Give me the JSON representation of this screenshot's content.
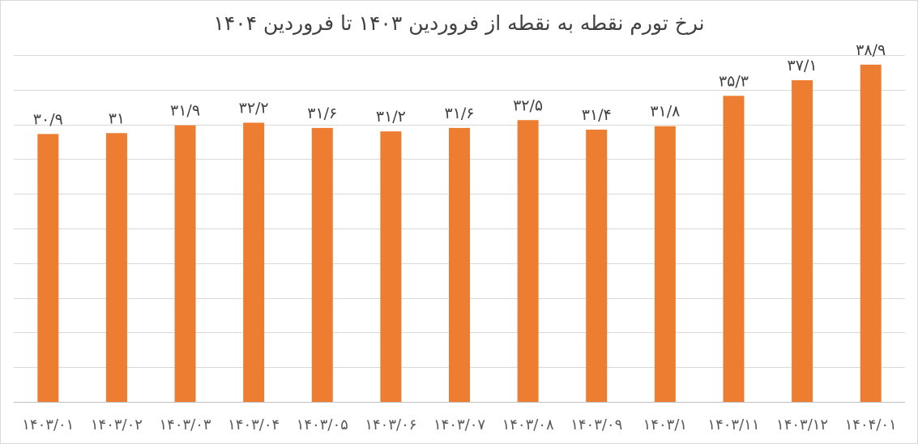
{
  "chart_data": {
    "type": "bar",
    "title": "نرخ تورم نقطه به نقطه از فروردین ۱۴۰۳ تا فروردین ۱۴۰۴",
    "xlabel": "",
    "ylabel": "",
    "categories": [
      "۱۴۰۳/۰۱",
      "۱۴۰۳/۰۲",
      "۱۴۰۳/۰۳",
      "۱۴۰۳/۰۴",
      "۱۴۰۳/۰۵",
      "۱۴۰۳/۰۶",
      "۱۴۰۳/۰۷",
      "۱۴۰۳/۰۸",
      "۱۴۰۳/۰۹",
      "۱۴۰۳/۱",
      "۱۴۰۳/۱۱",
      "۱۴۰۳/۱۲",
      "۱۴۰۴/۰۱"
    ],
    "values": [
      30.9,
      31,
      31.9,
      32.2,
      31.6,
      31.2,
      31.6,
      32.5,
      31.4,
      31.8,
      35.3,
      37.1,
      38.9
    ],
    "data_labels": [
      "۳۰/۹",
      "۳۱",
      "۳۱/۹",
      "۳۲/۲",
      "۳۱/۶",
      "۳۱/۲",
      "۳۱/۶",
      "۳۲/۵",
      "۳۱/۴",
      "۳۱/۸",
      "۳۵/۳",
      "۳۷/۱",
      "۳۸/۹"
    ],
    "ylim": [
      0,
      40
    ],
    "gridlines": "horizontal",
    "legend": "none",
    "bar_color": "#ed7d31"
  }
}
